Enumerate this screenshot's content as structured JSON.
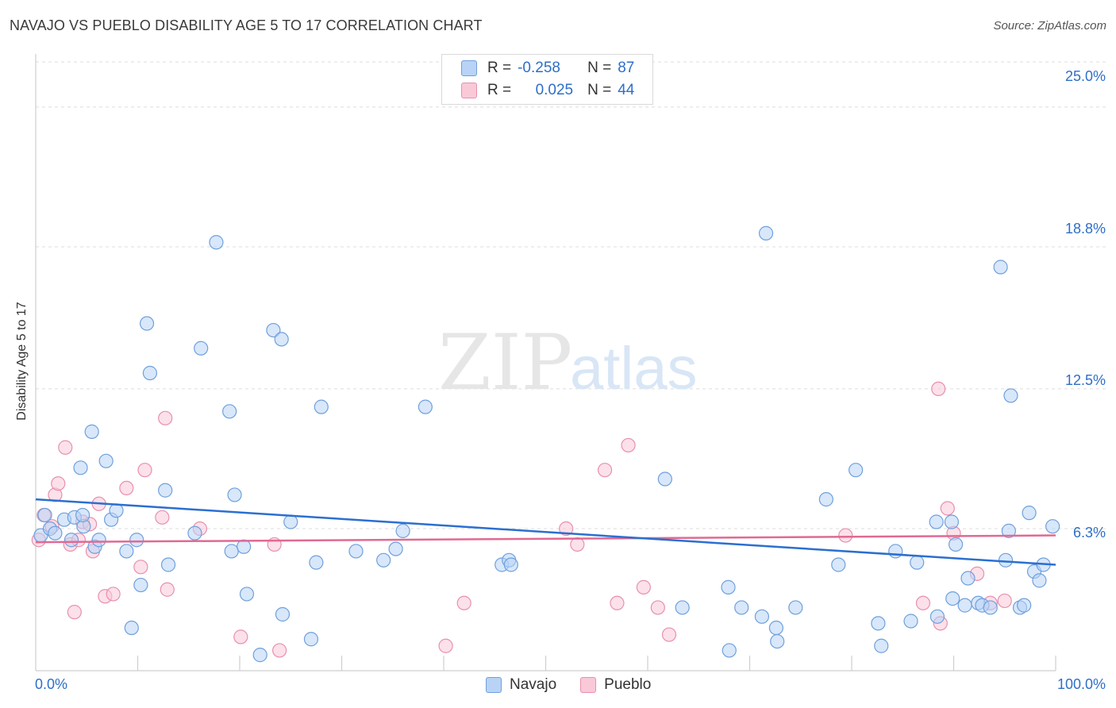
{
  "header": {
    "title": "NAVAJO VS PUEBLO DISABILITY AGE 5 TO 17 CORRELATION CHART",
    "source": "Source: ZipAtlas.com"
  },
  "watermark": {
    "zip": "ZIP",
    "atlas": "atlas"
  },
  "legend_top": {
    "rows": [
      {
        "r_label": "R =",
        "r_value": "-0.258",
        "n_label": "N =",
        "n_value": "87"
      },
      {
        "r_label": "R =",
        "r_value": "0.025",
        "n_label": "N =",
        "n_value": "44"
      }
    ]
  },
  "legend_bottom": {
    "items": [
      "Navajo",
      "Pueblo"
    ]
  },
  "axes": {
    "ylabel": "Disability Age 5 to 17",
    "x_ticks": [
      "0.0%",
      "100.0%"
    ],
    "y_ticks": [
      "25.0%",
      "18.8%",
      "12.5%",
      "6.3%"
    ]
  },
  "colors": {
    "navajo_fill": "#b8d3f5",
    "navajo_stroke": "#6fa0dc",
    "navajo_line": "#2b6fd0",
    "pueblo_fill": "#f9c9d8",
    "pueblo_stroke": "#e890ad",
    "pueblo_line": "#e06a93",
    "tick_text": "#2e6fc7",
    "grid": "#dcdcdc"
  },
  "chart_data": {
    "type": "scatter",
    "xlabel": "",
    "ylabel": "Disability Age 5 to 17",
    "xlim": [
      0,
      100
    ],
    "ylim": [
      0,
      27
    ],
    "y_gridlines": [
      6.3,
      12.5,
      18.8,
      25.0
    ],
    "x_minor_ticks": [
      10,
      20,
      30,
      40,
      50,
      60,
      70,
      80,
      90,
      100
    ],
    "series": [
      {
        "name": "Navajo",
        "r": -0.258,
        "n": 87,
        "trend": [
          [
            0,
            7.6
          ],
          [
            100,
            4.7
          ]
        ],
        "points": [
          [
            0.5,
            6.0
          ],
          [
            0.9,
            6.9
          ],
          [
            1.4,
            6.3
          ],
          [
            1.9,
            6.1
          ],
          [
            2.8,
            6.7
          ],
          [
            3.5,
            5.8
          ],
          [
            3.8,
            6.8
          ],
          [
            4.4,
            9.0
          ],
          [
            4.7,
            6.4
          ],
          [
            4.6,
            6.9
          ],
          [
            5.5,
            10.6
          ],
          [
            5.8,
            5.5
          ],
          [
            6.2,
            5.8
          ],
          [
            6.9,
            9.3
          ],
          [
            7.4,
            6.7
          ],
          [
            7.9,
            7.1
          ],
          [
            8.9,
            5.3
          ],
          [
            9.4,
            1.9
          ],
          [
            9.9,
            5.8
          ],
          [
            10.3,
            3.8
          ],
          [
            10.9,
            15.4
          ],
          [
            11.2,
            13.2
          ],
          [
            12.7,
            8.0
          ],
          [
            13.0,
            4.7
          ],
          [
            15.6,
            6.1
          ],
          [
            16.2,
            14.3
          ],
          [
            17.7,
            19.0
          ],
          [
            19.0,
            11.5
          ],
          [
            19.2,
            5.3
          ],
          [
            19.5,
            7.8
          ],
          [
            20.4,
            5.5
          ],
          [
            20.7,
            3.4
          ],
          [
            22.0,
            0.7
          ],
          [
            23.3,
            15.1
          ],
          [
            24.1,
            14.7
          ],
          [
            24.2,
            2.5
          ],
          [
            25.0,
            6.6
          ],
          [
            27.0,
            1.4
          ],
          [
            27.5,
            4.8
          ],
          [
            28.0,
            11.7
          ],
          [
            31.4,
            5.3
          ],
          [
            34.1,
            4.9
          ],
          [
            35.3,
            5.4
          ],
          [
            36.0,
            6.2
          ],
          [
            38.2,
            11.7
          ],
          [
            45.7,
            4.7
          ],
          [
            46.4,
            4.9
          ],
          [
            46.6,
            4.7
          ],
          [
            61.7,
            8.5
          ],
          [
            63.4,
            2.8
          ],
          [
            67.9,
            3.7
          ],
          [
            68.0,
            0.9
          ],
          [
            69.2,
            2.8
          ],
          [
            71.2,
            2.4
          ],
          [
            72.6,
            1.9
          ],
          [
            71.6,
            19.4
          ],
          [
            72.7,
            1.3
          ],
          [
            74.5,
            2.8
          ],
          [
            77.5,
            7.6
          ],
          [
            78.7,
            4.7
          ],
          [
            80.4,
            8.9
          ],
          [
            82.6,
            2.1
          ],
          [
            82.9,
            1.1
          ],
          [
            84.3,
            5.3
          ],
          [
            85.8,
            2.2
          ],
          [
            86.4,
            4.8
          ],
          [
            88.3,
            6.6
          ],
          [
            88.4,
            2.4
          ],
          [
            89.8,
            6.6
          ],
          [
            89.9,
            3.2
          ],
          [
            90.2,
            5.6
          ],
          [
            91.1,
            2.9
          ],
          [
            91.4,
            4.1
          ],
          [
            92.4,
            3.0
          ],
          [
            92.8,
            2.9
          ],
          [
            93.6,
            2.8
          ],
          [
            94.6,
            17.9
          ],
          [
            95.1,
            4.9
          ],
          [
            95.4,
            6.2
          ],
          [
            95.6,
            12.2
          ],
          [
            96.5,
            2.8
          ],
          [
            96.9,
            2.9
          ],
          [
            97.4,
            7.0
          ],
          [
            97.9,
            4.4
          ],
          [
            98.4,
            4.0
          ],
          [
            98.8,
            4.7
          ],
          [
            99.7,
            6.4
          ]
        ]
      },
      {
        "name": "Pueblo",
        "r": 0.025,
        "n": 44,
        "trend": [
          [
            0,
            5.7
          ],
          [
            100,
            6.0
          ]
        ],
        "points": [
          [
            0.3,
            5.8
          ],
          [
            0.8,
            6.9
          ],
          [
            1.6,
            6.4
          ],
          [
            1.9,
            7.8
          ],
          [
            2.2,
            8.3
          ],
          [
            2.9,
            9.9
          ],
          [
            3.4,
            5.6
          ],
          [
            3.8,
            2.6
          ],
          [
            4.2,
            5.8
          ],
          [
            4.6,
            6.6
          ],
          [
            5.3,
            6.5
          ],
          [
            5.6,
            5.3
          ],
          [
            6.2,
            7.4
          ],
          [
            6.8,
            3.3
          ],
          [
            7.6,
            3.4
          ],
          [
            8.9,
            8.1
          ],
          [
            10.3,
            4.6
          ],
          [
            10.7,
            8.9
          ],
          [
            12.4,
            6.8
          ],
          [
            12.7,
            11.2
          ],
          [
            12.9,
            3.6
          ],
          [
            16.1,
            6.3
          ],
          [
            20.1,
            1.5
          ],
          [
            23.4,
            5.6
          ],
          [
            23.9,
            0.9
          ],
          [
            40.2,
            1.1
          ],
          [
            42.0,
            3.0
          ],
          [
            52.0,
            6.3
          ],
          [
            53.1,
            5.6
          ],
          [
            55.8,
            8.9
          ],
          [
            57.0,
            3.0
          ],
          [
            58.1,
            10.0
          ],
          [
            59.6,
            3.7
          ],
          [
            61.0,
            2.8
          ],
          [
            62.1,
            1.6
          ],
          [
            79.4,
            6.0
          ],
          [
            87.0,
            3.0
          ],
          [
            88.7,
            2.1
          ],
          [
            88.5,
            12.5
          ],
          [
            89.4,
            7.2
          ],
          [
            90.0,
            6.1
          ],
          [
            92.3,
            4.3
          ],
          [
            93.6,
            3.0
          ],
          [
            95.0,
            3.1
          ]
        ]
      }
    ]
  }
}
